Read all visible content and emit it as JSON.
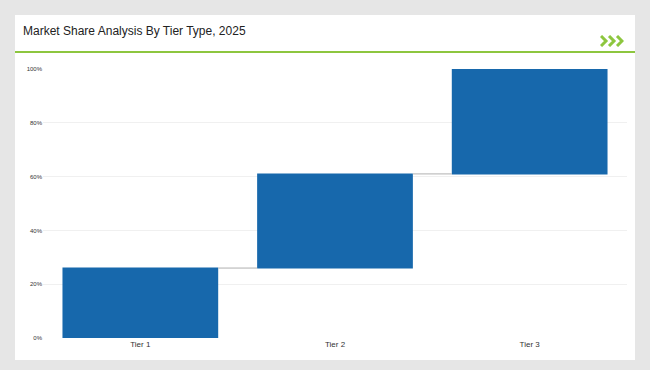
{
  "chart_data": {
    "type": "waterfall",
    "title": "Market Share Analysis By Tier Type, 2025",
    "categories": [
      "Tier 1",
      "Tier 2",
      "Tier 3"
    ],
    "values": [
      26,
      35,
      39
    ],
    "color": "#1768ac",
    "ylim": [
      0,
      100
    ],
    "yticks": [
      {
        "value": 0,
        "label": "0%"
      },
      {
        "value": 20,
        "label": "20%"
      },
      {
        "value": 40,
        "label": "40%"
      },
      {
        "value": 60,
        "label": "60%"
      },
      {
        "value": 80,
        "label": "80%"
      },
      {
        "value": 100,
        "label": "100%"
      }
    ],
    "grid": true
  }
}
